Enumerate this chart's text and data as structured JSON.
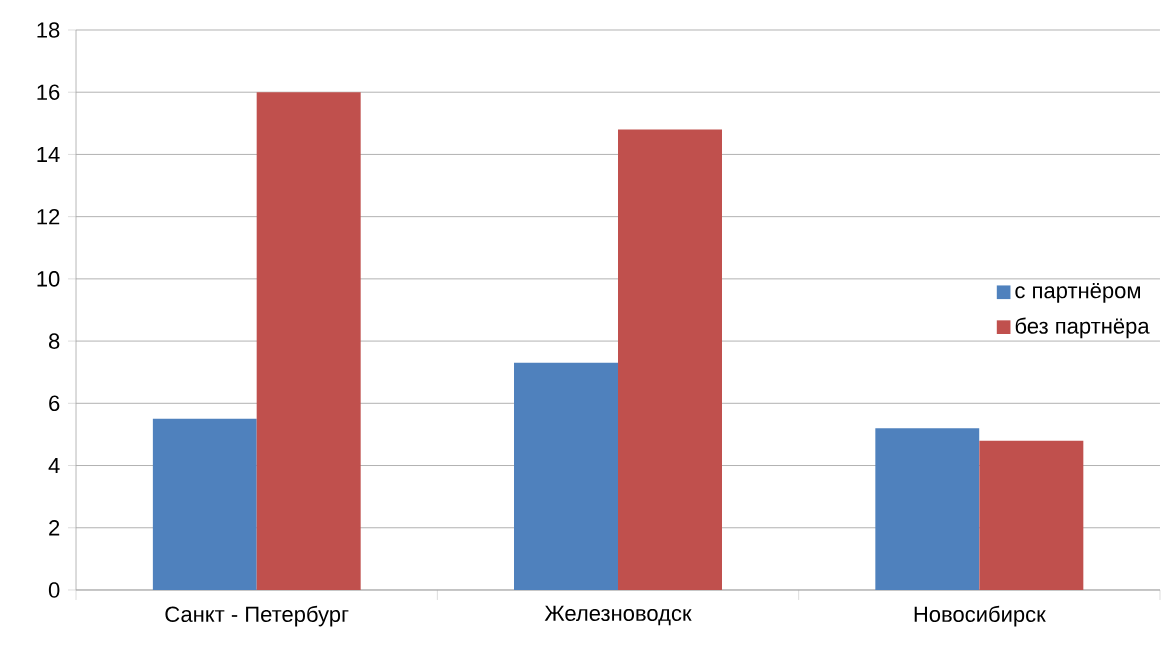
{
  "chart_data": {
    "type": "bar",
    "categories": [
      "Санкт - Петербург",
      "Железноводск",
      "Новосибирск"
    ],
    "series": [
      {
        "name": "с партнёром",
        "color": "#4f81bd",
        "values": [
          5.5,
          7.3,
          5.2
        ]
      },
      {
        "name": "без партнёра",
        "color": "#c0504d",
        "values": [
          16.0,
          14.8,
          4.8
        ]
      }
    ],
    "ylim": [
      0,
      18
    ],
    "yticks": [
      0,
      2,
      4,
      6,
      8,
      10,
      12,
      14,
      16,
      18
    ],
    "grid": "y",
    "legend": "right"
  }
}
